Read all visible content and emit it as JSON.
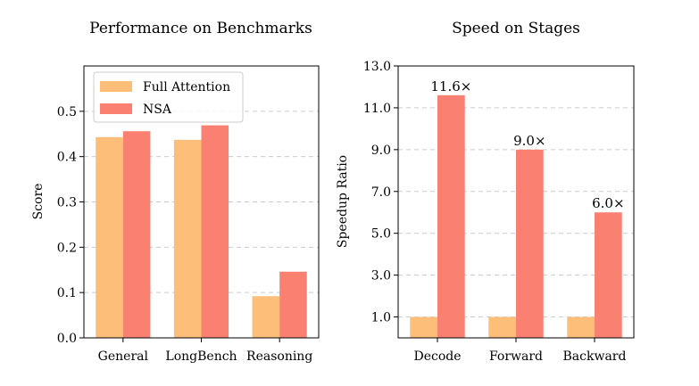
{
  "colors": {
    "full_attention": "#FDBE7A",
    "nsa": "#FA8072",
    "grid": "#cccccc"
  },
  "chart_data": [
    {
      "type": "bar",
      "title": "Performance on Benchmarks",
      "xlabel": "",
      "ylabel": "Score",
      "categories": [
        "General",
        "LongBench",
        "Reasoning"
      ],
      "series": [
        {
          "name": "Full Attention",
          "values": [
            0.443,
            0.437,
            0.092
          ]
        },
        {
          "name": "NSA",
          "values": [
            0.456,
            0.469,
            0.146
          ]
        }
      ],
      "ylim": [
        0.0,
        0.6
      ],
      "yticks": [
        0.0,
        0.1,
        0.2,
        0.3,
        0.4,
        0.5
      ],
      "ytick_labels": [
        "0.0",
        "0.1",
        "0.2",
        "0.3",
        "0.4",
        "0.5"
      ],
      "grid": "y-dashed",
      "legend": "top-left"
    },
    {
      "type": "bar",
      "title": "Speed on Stages",
      "xlabel": "",
      "ylabel": "Speedup Ratio",
      "categories": [
        "Decode",
        "Forward",
        "Backward"
      ],
      "series": [
        {
          "name": "Full Attention",
          "values": [
            1.0,
            1.0,
            1.0
          ]
        },
        {
          "name": "NSA",
          "values": [
            11.6,
            9.0,
            6.0
          ]
        }
      ],
      "data_labels": [
        "11.6×",
        "9.0×",
        "6.0×"
      ],
      "ylim": [
        0.0,
        13.0
      ],
      "yticks": [
        1.0,
        3.0,
        5.0,
        7.0,
        9.0,
        11.0,
        13.0
      ],
      "ytick_labels": [
        "1.0",
        "3.0",
        "5.0",
        "7.0",
        "9.0",
        "11.0",
        "13.0"
      ],
      "grid": "y-dashed",
      "legend": "none"
    }
  ]
}
